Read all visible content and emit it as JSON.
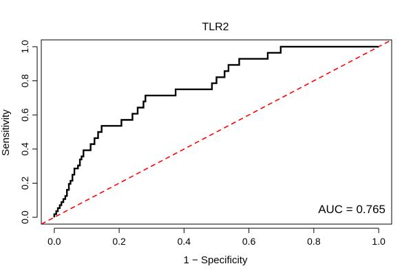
{
  "chart_data": {
    "type": "line",
    "title": "TLR2",
    "xlabel": "1 − Specificity",
    "ylabel": "Sensitivity",
    "xlim": [
      -0.04,
      1.04
    ],
    "ylim": [
      -0.04,
      1.04
    ],
    "xticks": [
      "0.0",
      "0.2",
      "0.4",
      "0.6",
      "0.8",
      "1.0"
    ],
    "yticks": [
      "0.0",
      "0.2",
      "0.4",
      "0.6",
      "0.8",
      "1.0"
    ],
    "xtick_values": [
      0,
      0.2,
      0.4,
      0.6,
      0.8,
      1.0
    ],
    "ytick_values": [
      0,
      0.2,
      0.4,
      0.6,
      0.8,
      1.0
    ],
    "grid": false,
    "annotation": "AUC = 0.765",
    "series": [
      {
        "color": "#000000",
        "style": "solid",
        "points": [
          [
            0.0,
            0.0
          ],
          [
            0.0,
            0.018
          ],
          [
            0.006,
            0.018
          ],
          [
            0.006,
            0.036
          ],
          [
            0.011,
            0.036
          ],
          [
            0.011,
            0.054
          ],
          [
            0.017,
            0.054
          ],
          [
            0.017,
            0.071
          ],
          [
            0.022,
            0.071
          ],
          [
            0.022,
            0.089
          ],
          [
            0.028,
            0.089
          ],
          [
            0.028,
            0.107
          ],
          [
            0.034,
            0.107
          ],
          [
            0.034,
            0.125
          ],
          [
            0.039,
            0.125
          ],
          [
            0.039,
            0.161
          ],
          [
            0.045,
            0.161
          ],
          [
            0.045,
            0.196
          ],
          [
            0.05,
            0.196
          ],
          [
            0.05,
            0.214
          ],
          [
            0.056,
            0.214
          ],
          [
            0.056,
            0.25
          ],
          [
            0.062,
            0.25
          ],
          [
            0.062,
            0.286
          ],
          [
            0.067,
            0.286
          ],
          [
            0.073,
            0.286
          ],
          [
            0.073,
            0.304
          ],
          [
            0.079,
            0.304
          ],
          [
            0.079,
            0.339
          ],
          [
            0.084,
            0.339
          ],
          [
            0.084,
            0.357
          ],
          [
            0.09,
            0.357
          ],
          [
            0.09,
            0.393
          ],
          [
            0.112,
            0.393
          ],
          [
            0.112,
            0.429
          ],
          [
            0.124,
            0.429
          ],
          [
            0.124,
            0.464
          ],
          [
            0.135,
            0.464
          ],
          [
            0.135,
            0.5
          ],
          [
            0.146,
            0.5
          ],
          [
            0.146,
            0.536
          ],
          [
            0.207,
            0.536
          ],
          [
            0.207,
            0.571
          ],
          [
            0.241,
            0.571
          ],
          [
            0.241,
            0.607
          ],
          [
            0.257,
            0.607
          ],
          [
            0.257,
            0.643
          ],
          [
            0.275,
            0.643
          ],
          [
            0.275,
            0.679
          ],
          [
            0.281,
            0.679
          ],
          [
            0.281,
            0.714
          ],
          [
            0.374,
            0.714
          ],
          [
            0.374,
            0.75
          ],
          [
            0.486,
            0.75
          ],
          [
            0.486,
            0.786
          ],
          [
            0.5,
            0.786
          ],
          [
            0.5,
            0.821
          ],
          [
            0.525,
            0.821
          ],
          [
            0.525,
            0.857
          ],
          [
            0.537,
            0.857
          ],
          [
            0.537,
            0.893
          ],
          [
            0.57,
            0.893
          ],
          [
            0.57,
            0.929
          ],
          [
            0.658,
            0.929
          ],
          [
            0.658,
            0.964
          ],
          [
            0.698,
            0.964
          ],
          [
            0.698,
            1.0
          ],
          [
            1.0,
            1.0
          ]
        ]
      },
      {
        "color": "#ff0000",
        "style": "dashed",
        "points": [
          [
            -0.04,
            -0.04
          ],
          [
            1.04,
            1.04
          ]
        ]
      }
    ]
  }
}
